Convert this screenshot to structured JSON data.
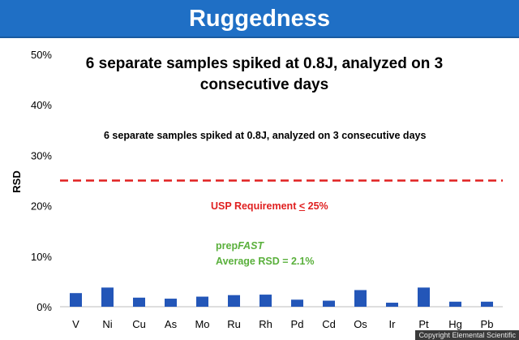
{
  "header": {
    "title": "Ruggedness"
  },
  "annotations": {
    "headline": "6 separate samples spiked at 0.8J, analyzed on 3 consecutive days",
    "subtitle": "6 separate samples spiked at 0.8J, analyzed on 3 consecutive days",
    "usp_prefix": "USP Requirement ",
    "usp_symbol": "<",
    "usp_suffix": " 25%",
    "method_prefix": "prep",
    "method_suffix": "FAST",
    "average": "Average RSD = 2.1%"
  },
  "copyright": "Copyright Elemental Scientific",
  "colors": {
    "bar": "#2356b8",
    "threshold": "#e02020",
    "header": "#1f6fc5",
    "green_text": "#5ab03c"
  },
  "chart_data": {
    "type": "bar",
    "categories": [
      "V",
      "Ni",
      "Cu",
      "As",
      "Mo",
      "Ru",
      "Rh",
      "Pd",
      "Cd",
      "Os",
      "Ir",
      "Pt",
      "Hg",
      "Pb"
    ],
    "values": [
      2.7,
      3.8,
      1.8,
      1.6,
      2.0,
      2.3,
      2.4,
      1.4,
      1.2,
      3.3,
      0.8,
      3.8,
      1.0,
      1.0
    ],
    "ylabel": "RSD",
    "ylim": [
      0,
      50
    ],
    "yticks": [
      "0%",
      "10%",
      "20%",
      "30%",
      "40%",
      "50%"
    ],
    "threshold": 25,
    "threshold_style": "dashed",
    "grid": false
  }
}
